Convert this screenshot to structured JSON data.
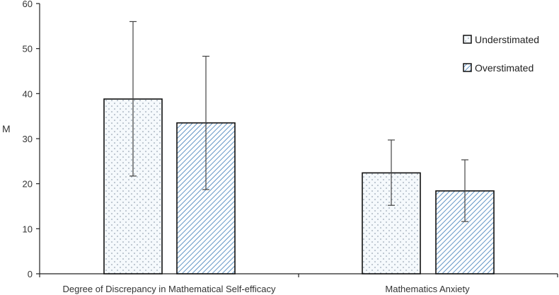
{
  "chart_data": {
    "type": "bar",
    "title": "",
    "xlabel": "",
    "ylabel": "M",
    "ylim": [
      0,
      60
    ],
    "yticks": [
      0,
      10,
      20,
      30,
      40,
      50,
      60
    ],
    "grid": false,
    "legend_position": "top-right",
    "categories": [
      "Degree of Discrepancy in Mathematical Self-efficacy",
      "Mathematics Anxiety"
    ],
    "series": [
      {
        "name": "Understimated",
        "pattern": "dots",
        "fill_color": "#f5f9fc",
        "pattern_color": "#7f8fa0",
        "values": [
          38.8,
          22.4
        ],
        "error_low": [
          21.7,
          15.2
        ],
        "error_high": [
          56.0,
          29.7
        ]
      },
      {
        "name": "Overstimated",
        "pattern": "diagonal-hatch",
        "fill_color": "#ffffff",
        "pattern_color": "#3a7ab8",
        "values": [
          33.5,
          18.4
        ],
        "error_low": [
          18.7,
          11.6
        ],
        "error_high": [
          48.3,
          25.3
        ]
      }
    ]
  }
}
